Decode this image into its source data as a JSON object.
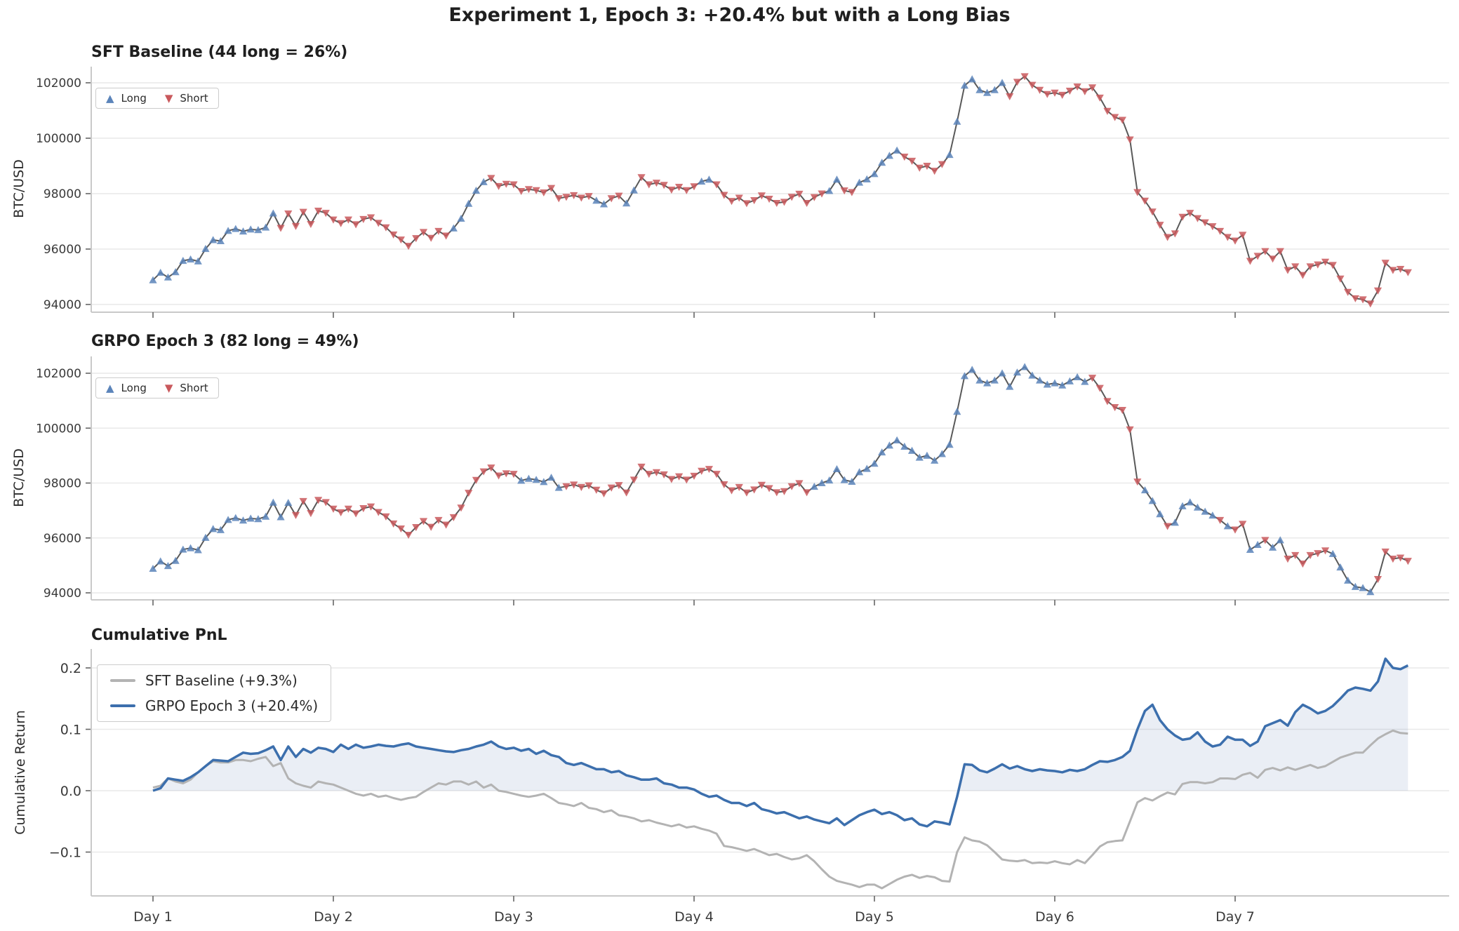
{
  "title": "Experiment 1, Epoch 3: +20.4% but with a Long Bias",
  "panels": {
    "sft": {
      "title": "SFT Baseline (44 long = 26%)",
      "ylabel": "BTC/USD",
      "legend": {
        "long": "Long",
        "short": "Short"
      }
    },
    "grpo": {
      "title": "GRPO Epoch 3 (82 long = 49%)",
      "ylabel": "BTC/USD",
      "legend": {
        "long": "Long",
        "short": "Short"
      }
    },
    "pnl": {
      "title": "Cumulative PnL",
      "ylabel": "Cumulative Return",
      "legend": {
        "sft": "SFT Baseline (+9.3%)",
        "grpo": "GRPO Epoch 3 (+20.4%)"
      }
    }
  },
  "chart_data": {
    "type": "multi-panel",
    "n_points": 168,
    "x_tick_labels": [
      "Day 1",
      "Day 2",
      "Day 3",
      "Day 4",
      "Day 5",
      "Day 6",
      "Day 7"
    ],
    "x_tick_hours": [
      0,
      24,
      48,
      72,
      96,
      120,
      144
    ],
    "price_yticks": [
      94000,
      96000,
      98000,
      100000,
      102000
    ],
    "price_ytick_labels": [
      "94000",
      "96000",
      "98000",
      "100000",
      "102000"
    ],
    "pnl_yticks": [
      -0.1,
      0.0,
      0.1,
      0.2
    ],
    "pnl_ytick_labels": [
      "−0.1",
      "0.0",
      "0.1",
      "0.2"
    ],
    "sft_long_count": 44,
    "sft_long_pct": 26,
    "grpo_long_count": 82,
    "grpo_long_pct": 49,
    "sft_total_return_pct": 9.3,
    "grpo_total_return_pct": 20.4,
    "btc_price": [
      94880,
      95150,
      94980,
      95170,
      95580,
      95630,
      95560,
      96010,
      96330,
      96290,
      96660,
      96730,
      96640,
      96710,
      96690,
      96780,
      97290,
      96760,
      97280,
      96830,
      97340,
      96900,
      97380,
      97300,
      97060,
      96930,
      97060,
      96890,
      97080,
      97140,
      96940,
      96780,
      96520,
      96340,
      96110,
      96390,
      96610,
      96400,
      96650,
      96480,
      96750,
      97100,
      97640,
      98110,
      98420,
      98560,
      98270,
      98350,
      98330,
      98090,
      98160,
      98120,
      98040,
      98200,
      97830,
      97880,
      97940,
      97850,
      97910,
      97750,
      97620,
      97830,
      97920,
      97650,
      98120,
      98590,
      98330,
      98390,
      98310,
      98140,
      98240,
      98120,
      98260,
      98440,
      98510,
      98330,
      97950,
      97730,
      97850,
      97650,
      97760,
      97930,
      97810,
      97660,
      97700,
      97880,
      97990,
      97660,
      97870,
      98000,
      98100,
      98510,
      98110,
      98050,
      98400,
      98520,
      98710,
      99120,
      99370,
      99560,
      99330,
      99180,
      98930,
      99000,
      98820,
      99060,
      99400,
      100600,
      101900,
      102130,
      101740,
      101640,
      101740,
      102000,
      101510,
      102030,
      102230,
      101920,
      101740,
      101590,
      101640,
      101560,
      101710,
      101860,
      101690,
      101830,
      101460,
      100980,
      100760,
      100660,
      99950,
      98050,
      97740,
      97350,
      96870,
      96430,
      96560,
      97160,
      97300,
      97110,
      96960,
      96820,
      96650,
      96430,
      96300,
      96510,
      95570,
      95750,
      95920,
      95650,
      95920,
      95240,
      95370,
      95060,
      95370,
      95440,
      95540,
      95420,
      94930,
      94450,
      94220,
      94180,
      94030,
      94500,
      95500,
      95240,
      95280,
      95160
    ],
    "sft_long_hours": [
      0,
      1,
      2,
      3,
      4,
      5,
      6,
      7,
      8,
      9,
      10,
      11,
      12,
      13,
      14,
      15,
      16,
      40,
      41,
      42,
      43,
      44,
      59,
      60,
      63,
      64,
      73,
      74,
      90,
      91,
      94,
      95,
      96,
      97,
      98,
      99,
      106,
      107,
      108,
      109,
      110,
      111,
      112,
      113
    ],
    "grpo_long_hours": [
      0,
      1,
      2,
      3,
      4,
      5,
      6,
      7,
      8,
      9,
      10,
      11,
      12,
      13,
      14,
      15,
      16,
      17,
      18,
      49,
      50,
      51,
      52,
      53,
      54,
      88,
      89,
      90,
      91,
      92,
      93,
      94,
      95,
      96,
      97,
      98,
      99,
      100,
      101,
      102,
      103,
      104,
      105,
      106,
      107,
      108,
      109,
      110,
      111,
      112,
      113,
      114,
      115,
      116,
      117,
      118,
      119,
      120,
      121,
      122,
      123,
      124,
      132,
      133,
      134,
      136,
      137,
      138,
      139,
      140,
      141,
      143,
      146,
      147,
      149,
      150,
      157,
      158,
      159,
      160,
      161,
      162
    ],
    "sft_cum_return": [
      0.005,
      0.008,
      0.02,
      0.015,
      0.012,
      0.018,
      0.03,
      0.04,
      0.048,
      0.046,
      0.046,
      0.05,
      0.05,
      0.048,
      0.052,
      0.055,
      0.04,
      0.045,
      0.02,
      0.012,
      0.008,
      0.005,
      0.015,
      0.012,
      0.01,
      0.005,
      0.0,
      -0.005,
      -0.008,
      -0.005,
      -0.01,
      -0.008,
      -0.012,
      -0.015,
      -0.012,
      -0.01,
      -0.002,
      0.005,
      0.012,
      0.01,
      0.015,
      0.015,
      0.01,
      0.015,
      0.005,
      0.01,
      0.0,
      -0.002,
      -0.005,
      -0.008,
      -0.01,
      -0.008,
      -0.005,
      -0.012,
      -0.02,
      -0.022,
      -0.025,
      -0.02,
      -0.028,
      -0.03,
      -0.035,
      -0.032,
      -0.04,
      -0.042,
      -0.045,
      -0.05,
      -0.048,
      -0.052,
      -0.055,
      -0.058,
      -0.055,
      -0.06,
      -0.058,
      -0.062,
      -0.065,
      -0.07,
      -0.09,
      -0.092,
      -0.095,
      -0.098,
      -0.095,
      -0.1,
      -0.105,
      -0.103,
      -0.108,
      -0.112,
      -0.11,
      -0.105,
      -0.115,
      -0.128,
      -0.14,
      -0.147,
      -0.15,
      -0.153,
      -0.157,
      -0.153,
      -0.153,
      -0.159,
      -0.152,
      -0.145,
      -0.14,
      -0.137,
      -0.142,
      -0.139,
      -0.141,
      -0.147,
      -0.148,
      -0.1,
      -0.076,
      -0.081,
      -0.083,
      -0.089,
      -0.1,
      -0.112,
      -0.114,
      -0.115,
      -0.113,
      -0.118,
      -0.117,
      -0.118,
      -0.115,
      -0.118,
      -0.12,
      -0.113,
      -0.118,
      -0.105,
      -0.091,
      -0.084,
      -0.082,
      -0.081,
      -0.05,
      -0.019,
      -0.012,
      -0.016,
      -0.009,
      -0.003,
      -0.006,
      0.011,
      0.014,
      0.014,
      0.012,
      0.014,
      0.02,
      0.02,
      0.019,
      0.026,
      0.029,
      0.021,
      0.034,
      0.037,
      0.033,
      0.038,
      0.034,
      0.038,
      0.042,
      0.037,
      0.04,
      0.047,
      0.054,
      0.058,
      0.062,
      0.062,
      0.074,
      0.085,
      0.092,
      0.098,
      0.094,
      0.093
    ],
    "grpo_cum_return": [
      0.0,
      0.004,
      0.02,
      0.018,
      0.016,
      0.022,
      0.03,
      0.04,
      0.05,
      0.049,
      0.048,
      0.055,
      0.062,
      0.06,
      0.061,
      0.066,
      0.072,
      0.05,
      0.072,
      0.055,
      0.068,
      0.062,
      0.07,
      0.068,
      0.063,
      0.075,
      0.068,
      0.075,
      0.07,
      0.072,
      0.075,
      0.073,
      0.072,
      0.075,
      0.077,
      0.072,
      0.07,
      0.068,
      0.066,
      0.064,
      0.063,
      0.066,
      0.068,
      0.072,
      0.075,
      0.08,
      0.072,
      0.068,
      0.07,
      0.065,
      0.068,
      0.06,
      0.065,
      0.058,
      0.055,
      0.045,
      0.042,
      0.045,
      0.04,
      0.035,
      0.035,
      0.03,
      0.032,
      0.025,
      0.022,
      0.018,
      0.018,
      0.02,
      0.012,
      0.01,
      0.005,
      0.005,
      0.002,
      -0.005,
      -0.01,
      -0.008,
      -0.015,
      -0.02,
      -0.02,
      -0.025,
      -0.02,
      -0.03,
      -0.033,
      -0.037,
      -0.035,
      -0.04,
      -0.045,
      -0.042,
      -0.047,
      -0.05,
      -0.053,
      -0.045,
      -0.056,
      -0.048,
      -0.04,
      -0.035,
      -0.031,
      -0.038,
      -0.035,
      -0.04,
      -0.048,
      -0.045,
      -0.055,
      -0.058,
      -0.05,
      -0.052,
      -0.055,
      -0.01,
      0.043,
      0.042,
      0.033,
      0.03,
      0.036,
      0.043,
      0.036,
      0.04,
      0.035,
      0.032,
      0.035,
      0.033,
      0.032,
      0.03,
      0.034,
      0.032,
      0.035,
      0.042,
      0.048,
      0.047,
      0.05,
      0.055,
      0.065,
      0.1,
      0.13,
      0.14,
      0.115,
      0.1,
      0.09,
      0.083,
      0.085,
      0.095,
      0.08,
      0.072,
      0.075,
      0.088,
      0.083,
      0.083,
      0.073,
      0.08,
      0.105,
      0.11,
      0.115,
      0.106,
      0.128,
      0.14,
      0.134,
      0.126,
      0.13,
      0.138,
      0.15,
      0.163,
      0.168,
      0.166,
      0.163,
      0.178,
      0.215,
      0.2,
      0.198,
      0.204
    ],
    "colors": {
      "long_marker": "#5b84ba",
      "short_marker": "#c9585c",
      "price_line": "#595959",
      "sft_pnl_line": "#b3b3b3",
      "grpo_pnl_line": "#3c6fad",
      "grpo_fill": "rgba(79,114,176,0.12)",
      "grid": "#e9e9e9",
      "spine": "#c9c9c9",
      "tick_text": "#3a3a3a"
    }
  }
}
